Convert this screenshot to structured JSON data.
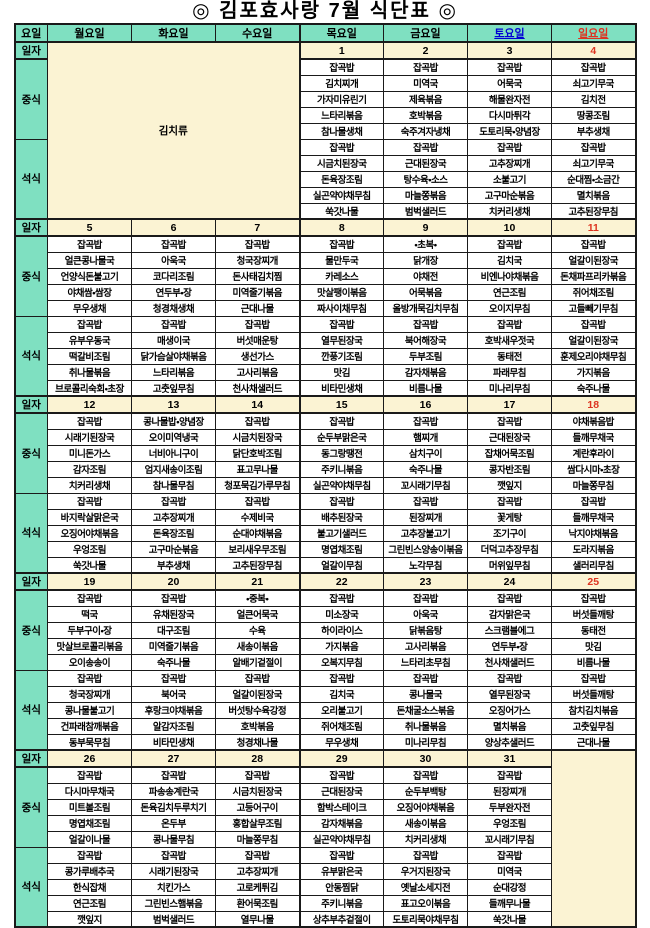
{
  "title": "◎ 김포효사랑  7월 식단표 ◎",
  "colors": {
    "header_green": "#7fe0c1",
    "date_beige": "#fbf3d3",
    "saturday_blue": "#0000d4",
    "sunday_red": "#dd3320",
    "border": "#1a1a1a"
  },
  "days_header": [
    "요일",
    "월요일",
    "화요일",
    "수요일",
    "목요일",
    "금요일",
    "토요일",
    "일요일"
  ],
  "row_labels": {
    "date": "일자",
    "lunch": "중식",
    "dinner": "석식"
  },
  "weeks": [
    {
      "dates": [
        "",
        "",
        "",
        "1",
        "2",
        "3",
        "4"
      ],
      "merged": {
        "cols": [
          0,
          1,
          2
        ],
        "label": "김치류"
      },
      "lunch": [
        null,
        null,
        null,
        [
          "잡곡밥",
          "김치찌개",
          "가자미유린기",
          "느타리볶음",
          "참나물생채"
        ],
        [
          "잡곡밥",
          "미역국",
          "제육볶음",
          "호박볶음",
          "숙주겨자냉채"
        ],
        [
          "잡곡밥",
          "어묵국",
          "해물완자전",
          "다시마튀각",
          "도토리묵•양념장"
        ],
        [
          "잡곡밥",
          "쇠고기무국",
          "김치전",
          "땅콩조림",
          "부추생채"
        ]
      ],
      "dinner": [
        null,
        null,
        null,
        [
          "잡곡밥",
          "시금치된장국",
          "돈육장조림",
          "실곤약야채무침",
          "쑥갓나물"
        ],
        [
          "잡곡밥",
          "근대된장국",
          "탕수육•소스",
          "마늘쫑볶음",
          "범벅샐러드"
        ],
        [
          "잡곡밥",
          "고추장찌개",
          "소불고기",
          "고구마순볶음",
          "치커리생채"
        ],
        [
          "잡곡밥",
          "쇠고기무국",
          "순대찜•소금간",
          "멸치볶음",
          "고추된장무침"
        ]
      ]
    },
    {
      "dates": [
        "5",
        "6",
        "7",
        "8",
        "9",
        "10",
        "11"
      ],
      "lunch": [
        [
          "잡곡밥",
          "얼큰콩나물국",
          "언양식돈불고기",
          "야채쌈•쌈장",
          "무우생채"
        ],
        [
          "잡곡밥",
          "아욱국",
          "코다리조림",
          "연두부•장",
          "청경채생채"
        ],
        [
          "잡곡밥",
          "청국장찌개",
          "돈사태김치찜",
          "미역줄기볶음",
          "근대나물"
        ],
        [
          "잡곡밥",
          "물만두국",
          "카레소스",
          "맛살팽이볶음",
          "짜사이채무침"
        ],
        [
          "•초복•",
          "닭개장",
          "야채전",
          "어묵볶음",
          "올방개묵김치무침"
        ],
        [
          "잡곡밥",
          "김치국",
          "비엔나야채볶음",
          "연근조림",
          "오이지무침"
        ],
        [
          "잡곡밥",
          "얼갈이된장국",
          "돈채파프리카볶음",
          "쥐어채조림",
          "고들빼기무침"
        ]
      ],
      "dinner": [
        [
          "잡곡밥",
          "유부우동국",
          "떡갈비조림",
          "취나물볶음",
          "브로콜리숙회•초장"
        ],
        [
          "잡곡밥",
          "매생이국",
          "닭가슴살야채볶음",
          "느타리볶음",
          "고춧잎무침"
        ],
        [
          "잡곡밥",
          "버섯매운탕",
          "생선가스",
          "고사리볶음",
          "천사채샐러드"
        ],
        [
          "잡곡밥",
          "열무된장국",
          "깐풍기조림",
          "맛김",
          "비타민생채"
        ],
        [
          "잡곡밥",
          "북어해장국",
          "두부조림",
          "감자채볶음",
          "비름나물"
        ],
        [
          "잡곡밥",
          "호박새우젓국",
          "동태전",
          "파래무침",
          "미나리무침"
        ],
        [
          "잡곡밥",
          "얼갈이된장국",
          "훈제오리야채무침",
          "가지볶음",
          "숙주나물"
        ]
      ]
    },
    {
      "dates": [
        "12",
        "13",
        "14",
        "15",
        "16",
        "17",
        "18"
      ],
      "lunch": [
        [
          "잡곡밥",
          "시래기된장국",
          "미니돈가스",
          "감자조림",
          "치커리생채"
        ],
        [
          "콩나물밥•양념장",
          "오이미역냉국",
          "너비아니구이",
          "엄지새송이조림",
          "참나물무침"
        ],
        [
          "잡곡밥",
          "시금치된장국",
          "닭단호박조림",
          "표고무나물",
          "청포묵김가루무침"
        ],
        [
          "잡곡밥",
          "순두부맑은국",
          "동그랑땡전",
          "주키니볶음",
          "실곤약야채무침"
        ],
        [
          "잡곡밥",
          "햄찌개",
          "삼치구이",
          "숙주나물",
          "꼬시래기무침"
        ],
        [
          "잡곡밥",
          "근대된장국",
          "잡채어묵조림",
          "콩자반조림",
          "깻잎지"
        ],
        [
          "야채볶음밥",
          "들깨무채국",
          "계란후라이",
          "쌈다시마•초장",
          "마늘쫑무침"
        ]
      ],
      "dinner": [
        [
          "잡곡밥",
          "바지락살맑은국",
          "오징어야채볶음",
          "우엉조림",
          "쑥갓나물"
        ],
        [
          "잡곡밥",
          "고추장찌개",
          "돈육장조림",
          "고구마순볶음",
          "부추생채"
        ],
        [
          "잡곡밥",
          "수제비국",
          "순대야채볶음",
          "보리새우무조림",
          "고추된장무침"
        ],
        [
          "잡곡밥",
          "배추된장국",
          "불고기샐러드",
          "명엽채조림",
          "얼갈이무침"
        ],
        [
          "잡곡밥",
          "된장찌개",
          "고추장불고기",
          "그린빈스양송이볶음",
          "노각무침"
        ],
        [
          "잡곡밥",
          "꽃게탕",
          "조기구이",
          "더덕고추장무침",
          "머위잎무침"
        ],
        [
          "잡곡밥",
          "들깨무채국",
          "낙지야채볶음",
          "도라지볶음",
          "샐러리무침"
        ]
      ]
    },
    {
      "dates": [
        "19",
        "20",
        "21",
        "22",
        "23",
        "24",
        "25"
      ],
      "lunch": [
        [
          "잡곡밥",
          "떡국",
          "두부구이•장",
          "맛살브로콜리볶음",
          "오이송송이"
        ],
        [
          "잡곡밥",
          "유채된장국",
          "대구조림",
          "미역줄기볶음",
          "숙주나물"
        ],
        [
          "•중복•",
          "얼큰어묵국",
          "수육",
          "새송이볶음",
          "알배기겉절이"
        ],
        [
          "잡곡밥",
          "미소장국",
          "하이라이스",
          "가지볶음",
          "오복지무침"
        ],
        [
          "잡곡밥",
          "아욱국",
          "닭볶음탕",
          "고사리볶음",
          "느타리초무침"
        ],
        [
          "잡곡밥",
          "감자맑은국",
          "스크램블에그",
          "연두부•장",
          "천사채샐러드"
        ],
        [
          "잡곡밥",
          "버섯들깨탕",
          "동태전",
          "맛김",
          "비름나물"
        ]
      ],
      "dinner": [
        [
          "잡곡밥",
          "청국장찌개",
          "콩나물불고기",
          "건파래참깨볶음",
          "동부묵무침"
        ],
        [
          "잡곡밥",
          "북어국",
          "후랑크야채볶음",
          "알감자조림",
          "비타민생채"
        ],
        [
          "잡곡밥",
          "얼갈이된장국",
          "버섯탕수육강정",
          "호박볶음",
          "청경채나물"
        ],
        [
          "잡곡밥",
          "김치국",
          "오리불고기",
          "쥐어채조림",
          "무우생채"
        ],
        [
          "잡곡밥",
          "콩나물국",
          "돈채굴소스볶음",
          "취나물볶음",
          "미나리무침"
        ],
        [
          "잡곡밥",
          "열무된장국",
          "오징어가스",
          "멸치볶음",
          "양상추샐러드"
        ],
        [
          "잡곡밥",
          "버섯들깨탕",
          "참치김치볶음",
          "고춧잎무침",
          "근대나물"
        ]
      ]
    },
    {
      "dates": [
        "26",
        "27",
        "28",
        "29",
        "30",
        "31",
        ""
      ],
      "merged": {
        "cols": [
          6
        ],
        "label": ""
      },
      "lunch": [
        [
          "잡곡밥",
          "다시마무채국",
          "미트볼조림",
          "명엽채조림",
          "얼갈이나물"
        ],
        [
          "잡곡밥",
          "파송송계란국",
          "돈육김치두루치기",
          "온두부",
          "콩나물무침"
        ],
        [
          "잡곡밥",
          "시금치된장국",
          "고등어구이",
          "홍합살무조림",
          "마늘쫑무침"
        ],
        [
          "잡곡밥",
          "근대된장국",
          "함박스테이크",
          "감자채볶음",
          "실곤약야채무침"
        ],
        [
          "잡곡밥",
          "순두부백탕",
          "오징어야채볶음",
          "새송이볶음",
          "치커리생채"
        ],
        [
          "잡곡밥",
          "된장찌개",
          "두부완자전",
          "우엉조림",
          "꼬시래기무침"
        ],
        null
      ],
      "dinner": [
        [
          "잡곡밥",
          "콩가루배추국",
          "한식잡채",
          "연근조림",
          "깻잎지"
        ],
        [
          "잡곡밥",
          "시래기된장국",
          "치킨가스",
          "그린빈스햄볶음",
          "범벅샐러드"
        ],
        [
          "잡곡밥",
          "고추장찌개",
          "고로케튀김",
          "환어묵조림",
          "열무나물"
        ],
        [
          "잡곡밥",
          "유부맑은국",
          "안동찜닭",
          "주키니볶음",
          "상추부추겉절이"
        ],
        [
          "잡곡밥",
          "우거지된장국",
          "옛날소세지전",
          "표고오이볶음",
          "도토리묵야채무침"
        ],
        [
          "잡곡밥",
          "미역국",
          "순대강정",
          "들깨무나물",
          "쑥갓나물"
        ],
        null
      ]
    }
  ]
}
